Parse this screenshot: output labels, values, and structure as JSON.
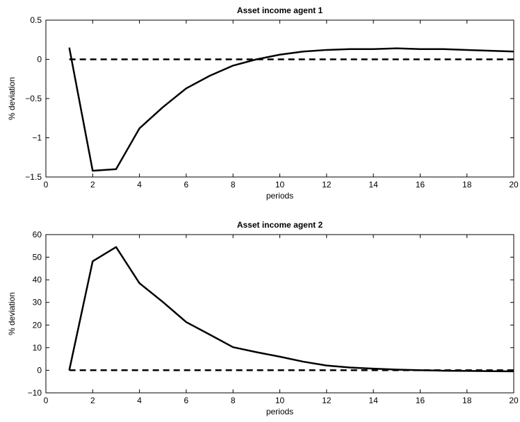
{
  "chart_data": [
    {
      "type": "line",
      "title": "Asset income agent 1",
      "xlabel": "periods",
      "ylabel": "% deviation",
      "xlim": [
        0,
        20
      ],
      "ylim": [
        -1.5,
        0.5
      ],
      "xticks": [
        0,
        2,
        4,
        6,
        8,
        10,
        12,
        14,
        16,
        18,
        20
      ],
      "yticks": [
        -1.5,
        -1,
        -0.5,
        0,
        0.5
      ],
      "ytick_labels": [
        "−1.5",
        "−1",
        "−0.5",
        "0",
        "0.5"
      ],
      "grid": false,
      "series": [
        {
          "style": "solid",
          "color": "#000000",
          "x": [
            1,
            2,
            3,
            4,
            5,
            6,
            7,
            8,
            9,
            10,
            11,
            12,
            13,
            14,
            15,
            16,
            17,
            18,
            19,
            20
          ],
          "y": [
            0.15,
            -1.42,
            -1.4,
            -0.88,
            -0.61,
            -0.37,
            -0.21,
            -0.08,
            0.0,
            0.06,
            0.1,
            0.12,
            0.13,
            0.13,
            0.14,
            0.13,
            0.13,
            0.12,
            0.11,
            0.1
          ]
        },
        {
          "style": "dashed",
          "color": "#000000",
          "x": [
            1,
            20
          ],
          "y": [
            0,
            0
          ]
        }
      ]
    },
    {
      "type": "line",
      "title": "Asset income agent 2",
      "xlabel": "periods",
      "ylabel": "% deviation",
      "xlim": [
        0,
        20
      ],
      "ylim": [
        -10,
        60
      ],
      "xticks": [
        0,
        2,
        4,
        6,
        8,
        10,
        12,
        14,
        16,
        18,
        20
      ],
      "yticks": [
        -10,
        0,
        10,
        20,
        30,
        40,
        50,
        60
      ],
      "ytick_labels": [
        "−10",
        "0",
        "10",
        "20",
        "30",
        "40",
        "50",
        "60"
      ],
      "grid": false,
      "series": [
        {
          "style": "solid",
          "color": "#000000",
          "x": [
            1,
            2,
            3,
            4,
            5,
            6,
            7,
            8,
            9,
            10,
            11,
            12,
            13,
            14,
            15,
            16,
            17,
            18,
            19,
            20
          ],
          "y": [
            0,
            48.2,
            54.5,
            38.5,
            30.2,
            21.3,
            15.8,
            10.2,
            8.0,
            6.0,
            3.8,
            2.1,
            1.2,
            0.7,
            0.3,
            0.0,
            -0.2,
            -0.3,
            -0.4,
            -0.5
          ]
        },
        {
          "style": "dashed",
          "color": "#000000",
          "x": [
            1,
            20
          ],
          "y": [
            0,
            0
          ]
        }
      ]
    }
  ]
}
